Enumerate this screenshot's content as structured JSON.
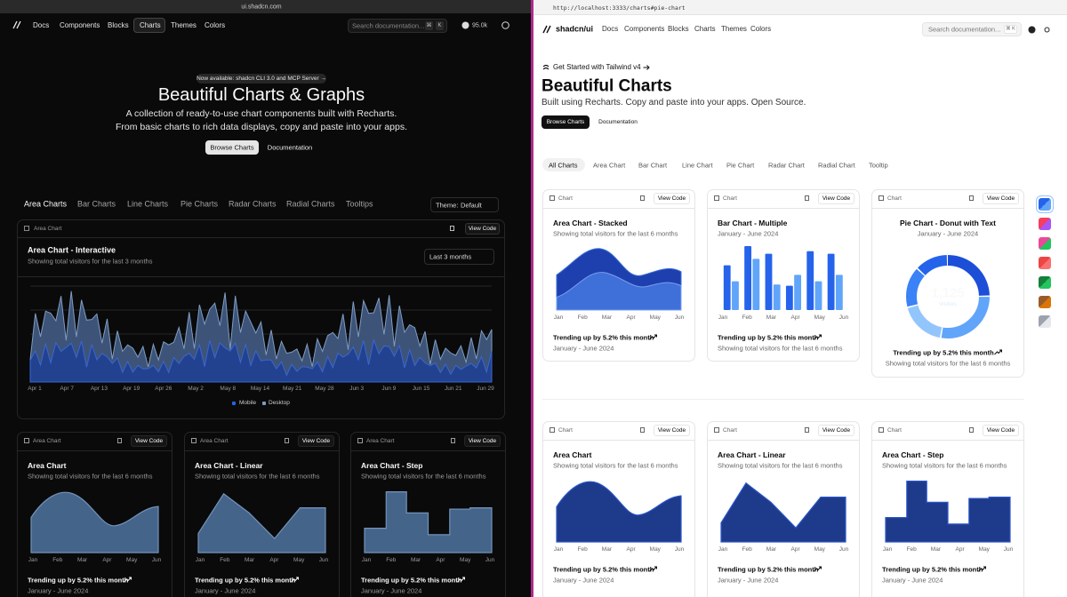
{
  "left": {
    "url": "ui.shadcn.com",
    "nav": [
      "Docs",
      "Components",
      "Blocks",
      "Charts",
      "Themes",
      "Colors"
    ],
    "search": "Search documentation...",
    "search_keys": [
      "⌘",
      "K"
    ],
    "stars": "95.0k",
    "badge": "Now available: shadcn CLI 3.0 and MCP Server →",
    "title": "Beautiful Charts & Graphs",
    "subtitle": [
      "A collection of ready-to-use chart components built with Recharts.",
      "From basic charts to rich data displays, copy and paste into your apps."
    ],
    "buttons": [
      "Browse Charts",
      "Documentation"
    ],
    "tabs": [
      "Area Charts",
      "Bar Charts",
      "Line Charts",
      "Pie Charts",
      "Radar Charts",
      "Radial Charts",
      "Tooltips"
    ],
    "theme_label": "Theme:",
    "theme_value": "Default",
    "interactive": {
      "header": "Area Chart",
      "view_code": "View Code",
      "title": "Area Chart - Interactive",
      "description": "Showing total visitors for the last 3 months",
      "select": "Last 3 months",
      "x_labels": [
        "Apr 1",
        "Apr 7",
        "Apr 13",
        "Apr 19",
        "Apr 26",
        "May 2",
        "May 8",
        "May 14",
        "May 21",
        "May 28",
        "Jun 3",
        "Jun 9",
        "Jun 15",
        "Jun 21",
        "Jun 29"
      ],
      "legend": [
        "Mobile",
        "Desktop"
      ]
    },
    "cards": [
      {
        "header": "Area Chart",
        "view_code": "View Code",
        "title": "Area Chart",
        "description": "Showing total visitors for the last 6 months",
        "x_labels": [
          "Jan",
          "Feb",
          "Mar",
          "Apr",
          "May",
          "Jun"
        ],
        "footer": "Trending up by 5.2% this month",
        "footer_sub": "January - June 2024"
      },
      {
        "header": "Area Chart",
        "view_code": "View Code",
        "title": "Area Chart - Linear",
        "description": "Showing total visitors for the last 6 months",
        "x_labels": [
          "Jan",
          "Feb",
          "Mar",
          "Apr",
          "May",
          "Jun"
        ],
        "footer": "Trending up by 5.2% this month",
        "footer_sub": "January - June 2024"
      },
      {
        "header": "Area Chart",
        "view_code": "View Code",
        "title": "Area Chart - Step",
        "description": "Showing total visitors for the last 6 months",
        "x_labels": [
          "Jan",
          "Feb",
          "Mar",
          "Apr",
          "May",
          "Jun"
        ],
        "footer": "Trending up by 5.2% this month",
        "footer_sub": "January - June 2024"
      }
    ]
  },
  "right": {
    "url": "http://localhost:3333/charts#pie-chart",
    "brand": "shadcn/ui",
    "nav": [
      "Docs",
      "Components",
      "Blocks",
      "Charts",
      "Themes",
      "Colors"
    ],
    "search": "Search documentation...",
    "search_keys": "⌘ K",
    "announcement": "Get Started with Tailwind v4",
    "title": "Beautiful Charts",
    "subtitle": "Built using Recharts. Copy and paste into your apps. Open Source.",
    "buttons": [
      "Browse Charts",
      "Documentation"
    ],
    "tabs": [
      "All Charts",
      "Area Chart",
      "Bar Chart",
      "Line Chart",
      "Pie Chart",
      "Radar Chart",
      "Radial Chart",
      "Tooltip"
    ],
    "cards": [
      {
        "header": "Chart",
        "view_code": "View Code",
        "title": "Area Chart - Stacked",
        "description": "Showing total visitors for the last 6 months",
        "x_labels": [
          "Jan",
          "Feb",
          "Mar",
          "Apr",
          "May",
          "Jun"
        ],
        "footer": "Trending up by 5.2% this month",
        "footer_sub": "January - June 2024"
      },
      {
        "header": "Chart",
        "view_code": "View Code",
        "title": "Bar Chart - Multiple",
        "description": "January - June 2024",
        "x_labels": [
          "Jan",
          "Feb",
          "Mar",
          "Apr",
          "May",
          "Jun"
        ],
        "footer": "Trending up by 5.2% this month",
        "footer_sub": "Showing total visitors for the last 6 months"
      },
      {
        "header": "Chart",
        "view_code": "View Code",
        "title": "Pie Chart - Donut with Text",
        "description": "January - June 2024",
        "center_value": "1,125",
        "center_label": "Visitors",
        "footer": "Trending up by 5.2% this month",
        "footer_sub": "Showing total visitors for the last 6 months"
      },
      {
        "header": "Chart",
        "view_code": "View Code",
        "title": "Area Chart",
        "description": "Showing total visitors for the last 6 months",
        "x_labels": [
          "Jan",
          "Feb",
          "Mar",
          "Apr",
          "May",
          "Jun"
        ],
        "footer": "Trending up by 5.2% this month",
        "footer_sub": "January - June 2024"
      },
      {
        "header": "Chart",
        "view_code": "View Code",
        "title": "Area Chart - Linear",
        "description": "Showing total visitors for the last 6 months",
        "x_labels": [
          "Jan",
          "Feb",
          "Mar",
          "Apr",
          "May",
          "Jun"
        ],
        "footer": "Trending up by 5.2% this month",
        "footer_sub": "January - June 2024"
      },
      {
        "header": "Chart",
        "view_code": "View Code",
        "title": "Area Chart - Step",
        "description": "Showing total visitors for the last 6 months",
        "x_labels": [
          "Jan",
          "Feb",
          "Mar",
          "Apr",
          "May",
          "Jun"
        ],
        "footer": "Trending up by 5.2% this month",
        "footer_sub": "January - June 2024"
      }
    ]
  }
}
